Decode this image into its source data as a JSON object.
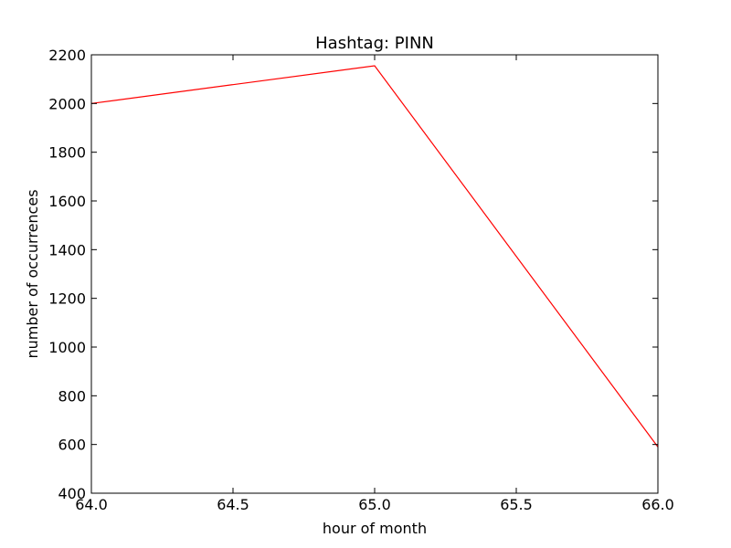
{
  "chart_data": {
    "type": "line",
    "title": "Hashtag: PINN",
    "xlabel": "hour of month",
    "ylabel": "number of occurrences",
    "xlim": [
      64.0,
      66.0
    ],
    "ylim": [
      400,
      2200
    ],
    "xticks": [
      "64.0",
      "64.5",
      "65.0",
      "65.5",
      "66.0"
    ],
    "xtick_values": [
      64.0,
      64.5,
      65.0,
      65.5,
      66.0
    ],
    "yticks": [
      "400",
      "600",
      "800",
      "1000",
      "1200",
      "1400",
      "1600",
      "1800",
      "2000",
      "2200"
    ],
    "ytick_values": [
      400,
      600,
      800,
      1000,
      1200,
      1400,
      1600,
      1800,
      2000,
      2200
    ],
    "grid": false,
    "series": [
      {
        "color": "#ff0000",
        "x": [
          64.0,
          65.0,
          66.0
        ],
        "y": [
          2000,
          2155,
          590
        ]
      }
    ]
  }
}
